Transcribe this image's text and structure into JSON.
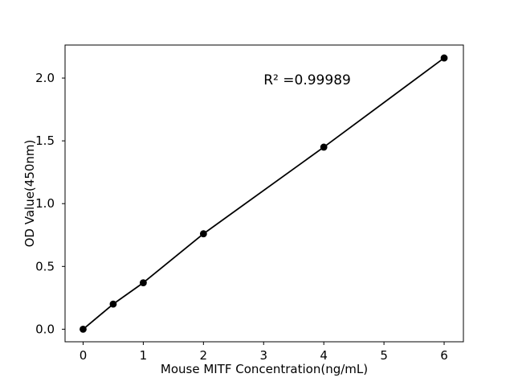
{
  "figure": {
    "background": "#ffffff",
    "foreground": "#000000"
  },
  "chart_data": {
    "type": "line",
    "title": "",
    "xlabel": "Mouse MITF Concentration(ng/mL)",
    "ylabel": "OD Value(450nm)",
    "x": [
      0,
      0.5,
      1,
      2,
      4,
      6
    ],
    "y": [
      0.0,
      0.2,
      0.37,
      0.76,
      1.45,
      2.16
    ],
    "xlim": [
      -0.3,
      6.32
    ],
    "ylim": [
      -0.1,
      2.263
    ],
    "xticks": {
      "values": [
        0,
        1,
        2,
        3,
        4,
        5,
        6
      ],
      "labels": [
        "0",
        "1",
        "2",
        "3",
        "4",
        "5",
        "6"
      ]
    },
    "yticks": {
      "values": [
        0.0,
        0.5,
        1.0,
        1.5,
        2.0
      ],
      "labels": [
        "0.0",
        "0.5",
        "1.0",
        "1.5",
        "2.0"
      ]
    },
    "grid": false,
    "legend": null,
    "marker": {
      "shape": "circle",
      "radius": 4.4,
      "color": "#000000"
    },
    "line": {
      "color": "#000000",
      "width": 1.8
    },
    "annotation": {
      "text": "R² =0.99989",
      "x": 3.0,
      "y": 1.95,
      "r_squared": "0.99989"
    }
  }
}
